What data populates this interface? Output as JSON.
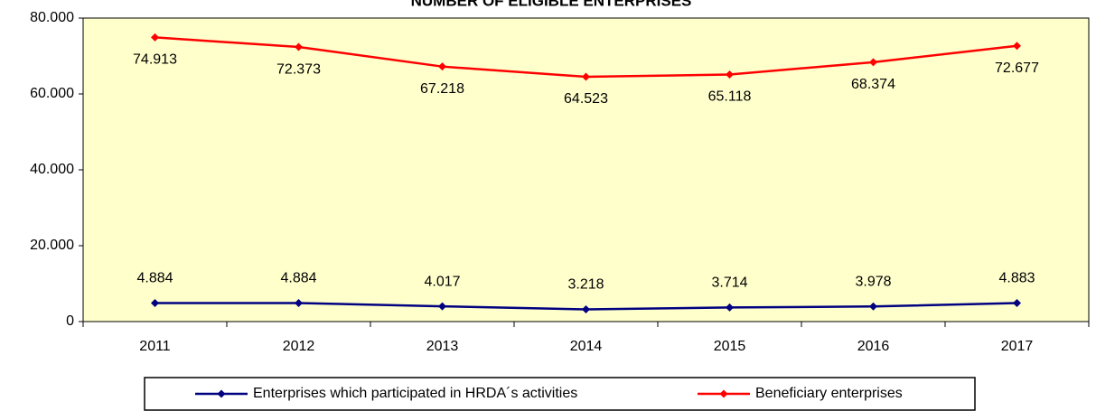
{
  "chart_data": {
    "type": "line",
    "title": "NUMBER OF ELIGIBLE ENTERPRISES",
    "categories": [
      "2011",
      "2012",
      "2013",
      "2014",
      "2015",
      "2016",
      "2017"
    ],
    "series": [
      {
        "name": "Enterprises which participated in HRDA´s activities",
        "color": "#000080",
        "values": [
          4884,
          4884,
          4017,
          3218,
          3714,
          3978,
          4883
        ],
        "value_labels": [
          "4.884",
          "4.884",
          "4.017",
          "3.218",
          "3.714",
          "3.978",
          "4.883"
        ]
      },
      {
        "name": "Beneficiary enterprises",
        "color": "#ff0000",
        "values": [
          74913,
          72373,
          67218,
          64523,
          65118,
          68374,
          72677
        ],
        "value_labels": [
          "74.913",
          "72.373",
          "67.218",
          "64.523",
          "65.118",
          "68.374",
          "72.677"
        ]
      }
    ],
    "ylim": [
      0,
      80000
    ],
    "yticks": [
      0,
      {
        "value": 20000,
        "label": "20.000"
      },
      {
        "value": 40000,
        "label": "40.000"
      },
      {
        "value": 60000,
        "label": "60.000"
      },
      {
        "value": 80000,
        "label": "80.000"
      }
    ],
    "plot_background": "#ffffcc",
    "legend": "bottom"
  }
}
